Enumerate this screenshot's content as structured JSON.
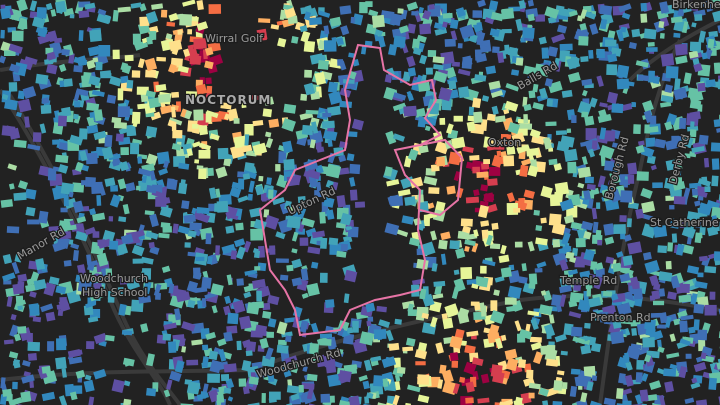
{
  "map": {
    "labels": [
      "Birkenhe",
      "Wirral Golf",
      "NOCTORUM",
      "Oxton",
      "Woodchurch",
      "High School",
      "Borough Rd",
      "Derby Rd",
      "St Catherine",
      "Temple Rd",
      "Prenton Rd",
      "Woodchurch Rd",
      "Balls Rd",
      "Upton Rd",
      "Manor Rd"
    ]
  }
}
